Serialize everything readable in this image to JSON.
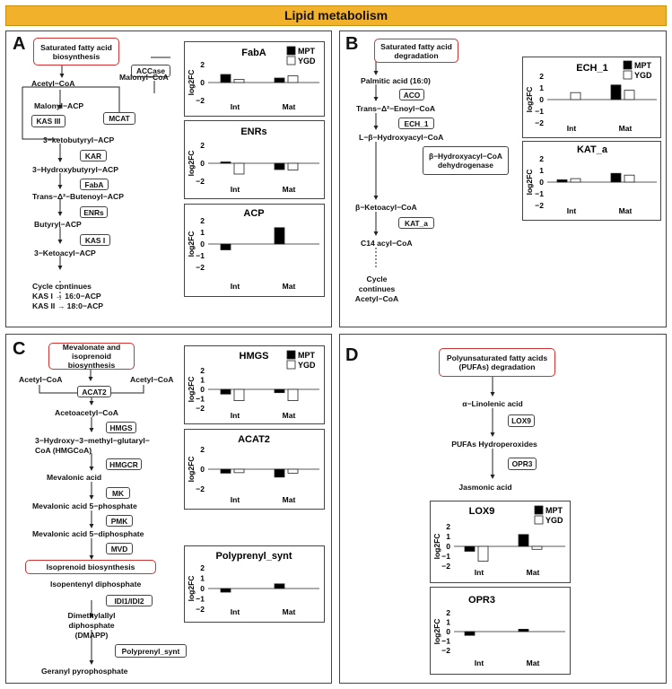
{
  "title": "Lipid metabolism",
  "legend": {
    "mpt": "MPT",
    "ygd": "YGD"
  },
  "ylabel": "log2FC",
  "panels": {
    "A": {
      "letter": "A",
      "header": "Saturated fatty acid biosynthesis",
      "metabolites": [
        "Acetyl−CoA",
        "Malonyl−CoA",
        "Malonyl−ACP",
        "3−ketobutyryl−ACP",
        "3−Hydroxybutyryl−ACP",
        "Trans−Δ²−Butenoyl−ACP",
        "Butyryl−ACP",
        "3−Ketoacyl−ACP"
      ],
      "enzymes": [
        "ACCase",
        "MCAT",
        "KAS III",
        "KAR",
        "FabA",
        "ENRs",
        "KAS I"
      ],
      "footer": [
        "Cycle continues",
        "KAS I → 16:0−ACP",
        "KAS II → 18:0−ACP"
      ]
    },
    "B": {
      "letter": "B",
      "header": "Saturated fatty acid degradation",
      "metabolites": [
        "Palmitic acid (16:0)",
        "Trans−Δ²−Enoyl−CoA",
        "L−β−Hydroxyacyl−CoA",
        "β−Ketoacyl−CoA",
        "C14 acyl−CoA"
      ],
      "enzymes": [
        "ACO",
        "ECH_1",
        "β−Hydroxyacyl−CoA dehydrogenase",
        "KAT_a"
      ],
      "footer": [
        "Cycle",
        "continues",
        "Acetyl−CoA"
      ]
    },
    "C": {
      "letter": "C",
      "header": "Mevalonate and isoprenoid biosynthesis",
      "header2": "Isoprenoid biosynthesis",
      "metabolites": [
        "Acetyl−CoA",
        "Acetyl−CoA",
        "Acetoacetyl−CoA",
        "3−Hydroxy−3−methyl−glutaryl−",
        "CoA (HMGCoA)",
        "Mevalonic acid",
        "Mevalonic acid 5−phosphate",
        "Mevalonic acid 5−diphosphate",
        "Isopentenyl diphosphate",
        "Dimethylallyl",
        "diphosphate",
        "(DMAPP)",
        "Geranyl pyrophosphate"
      ],
      "enzymes": [
        "ACAT2",
        "HMGS",
        "HMGCR",
        "MK",
        "PMK",
        "MVD",
        "IDI1/IDI2",
        "Polyprenyl_synt"
      ]
    },
    "D": {
      "letter": "D",
      "header": "Polyunsaturated fatty acids (PUFAs) degradation",
      "metabolites": [
        "α−Linolenic acid",
        "PUFAs Hydroperoxides",
        "Jasmonic acid"
      ],
      "enzymes": [
        "LOX9",
        "OPR3"
      ]
    }
  },
  "chart_data": [
    {
      "type": "bar",
      "title": "FabA",
      "categories": [
        "Int",
        "Mat"
      ],
      "series": [
        {
          "name": "MPT",
          "values": [
            0.9,
            0.5
          ]
        },
        {
          "name": "YGD",
          "values": [
            0.35,
            0.75
          ]
        }
      ],
      "ylabel": "log2FC",
      "yticks": [
        2,
        0,
        -2
      ],
      "ylim": [
        -2,
        2
      ],
      "legend": true
    },
    {
      "type": "bar",
      "title": "ENRs",
      "categories": [
        "Int",
        "Mat"
      ],
      "series": [
        {
          "name": "MPT",
          "values": [
            0.15,
            -0.7
          ]
        },
        {
          "name": "YGD",
          "values": [
            -1.2,
            -0.75
          ]
        }
      ],
      "ylabel": "log2FC",
      "yticks": [
        2,
        0,
        -2
      ],
      "ylim": [
        -2,
        2
      ],
      "legend": false
    },
    {
      "type": "bar",
      "title": "ACP",
      "categories": [
        "Int",
        "Mat"
      ],
      "series": [
        {
          "name": "MPT",
          "values": [
            -0.5,
            1.4
          ]
        },
        {
          "name": "YGD",
          "values": [
            0,
            0
          ]
        }
      ],
      "ylabel": "log2FC",
      "yticks": [
        2,
        1,
        0,
        -1,
        -2
      ],
      "ylim": [
        -2,
        2
      ],
      "legend": false
    },
    {
      "type": "bar",
      "title": "ECH_1",
      "categories": [
        "Int",
        "Mat"
      ],
      "series": [
        {
          "name": "MPT",
          "values": [
            0,
            1.25
          ]
        },
        {
          "name": "YGD",
          "values": [
            0.6,
            0.8
          ]
        }
      ],
      "ylabel": "log2FC",
      "yticks": [
        2,
        1,
        0,
        -1,
        -2
      ],
      "ylim": [
        -2,
        2
      ],
      "legend": true
    },
    {
      "type": "bar",
      "title": "KAT_a",
      "categories": [
        "Int",
        "Mat"
      ],
      "series": [
        {
          "name": "MPT",
          "values": [
            0.2,
            0.75
          ]
        },
        {
          "name": "YGD",
          "values": [
            0.3,
            0.6
          ]
        }
      ],
      "ylabel": "log2FC",
      "yticks": [
        2,
        1,
        0,
        -1,
        -2
      ],
      "ylim": [
        -2,
        2
      ],
      "legend": false
    },
    {
      "type": "bar",
      "title": "HMGS",
      "categories": [
        "Int",
        "Mat"
      ],
      "series": [
        {
          "name": "MPT",
          "values": [
            -0.5,
            -0.35
          ]
        },
        {
          "name": "YGD",
          "values": [
            -1.2,
            -1.2
          ]
        }
      ],
      "ylabel": "log2FC",
      "yticks": [
        2,
        1,
        0,
        -1,
        -2
      ],
      "ylim": [
        -2,
        2
      ],
      "legend": true
    },
    {
      "type": "bar",
      "title": "ACAT2",
      "categories": [
        "Int",
        "Mat"
      ],
      "series": [
        {
          "name": "MPT",
          "values": [
            -0.4,
            -0.8
          ]
        },
        {
          "name": "YGD",
          "values": [
            -0.35,
            -0.4
          ]
        }
      ],
      "ylabel": "log2FC",
      "yticks": [
        2,
        0,
        -2
      ],
      "ylim": [
        -2,
        2
      ],
      "legend": false
    },
    {
      "type": "bar",
      "title": "Polyprenyl_synt",
      "categories": [
        "Int",
        "Mat"
      ],
      "series": [
        {
          "name": "MPT",
          "values": [
            -0.35,
            0.45
          ]
        },
        {
          "name": "YGD",
          "values": [
            0,
            0
          ]
        }
      ],
      "ylabel": "log2FC",
      "yticks": [
        2,
        1,
        0,
        -1,
        -2
      ],
      "ylim": [
        -2,
        2
      ],
      "legend": false
    },
    {
      "type": "bar",
      "title": "LOX9",
      "categories": [
        "Int",
        "Mat"
      ],
      "series": [
        {
          "name": "MPT",
          "values": [
            -0.5,
            1.2
          ]
        },
        {
          "name": "YGD",
          "values": [
            -1.5,
            -0.3
          ]
        }
      ],
      "ylabel": "log2FC",
      "yticks": [
        2,
        1,
        0,
        -1,
        -2
      ],
      "ylim": [
        -2,
        2
      ],
      "legend": true
    },
    {
      "type": "bar",
      "title": "OPR3",
      "categories": [
        "Int",
        "Mat"
      ],
      "series": [
        {
          "name": "MPT",
          "values": [
            -0.4,
            0.25
          ]
        },
        {
          "name": "YGD",
          "values": [
            0,
            0
          ]
        }
      ],
      "ylabel": "log2FC",
      "yticks": [
        2,
        1,
        0,
        -1,
        -2
      ],
      "ylim": [
        -2,
        2
      ],
      "legend": false
    }
  ]
}
